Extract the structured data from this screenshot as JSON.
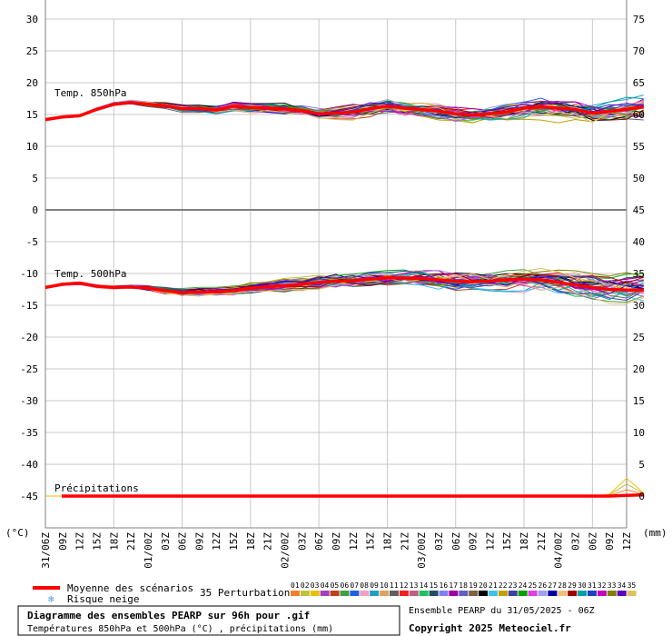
{
  "chart_data": {
    "type": "line",
    "title": "Diagramme des ensembles PEARP sur 96h pour .gif",
    "subtitle": "Températures 850hPa et 500hPa (°C) , précipitations (mm)",
    "run_label": "Ensemble PEARP du 31/05/2025 - 06Z",
    "copyright": "Copyright 2025 Meteociel.fr",
    "left_unit": "(°C)",
    "right_unit": "(mm)",
    "left_ylim": [
      -50,
      30
    ],
    "right_ylim": [
      0,
      80
    ],
    "left_ticks": [
      "30",
      "25",
      "20",
      "15",
      "10",
      "5",
      "0",
      "-5",
      "-10",
      "-15",
      "-20",
      "-25",
      "-30",
      "-35",
      "-40",
      "-45"
    ],
    "right_ticks": [
      "75",
      "70",
      "65",
      "60",
      "55",
      "50",
      "45",
      "40",
      "35",
      "30",
      "25",
      "20",
      "15",
      "10",
      "5",
      "0"
    ],
    "x_ticks": [
      "31/06Z",
      "09Z",
      "12Z",
      "15Z",
      "18Z",
      "21Z",
      "01/00Z",
      "03Z",
      "06Z",
      "09Z",
      "12Z",
      "15Z",
      "18Z",
      "21Z",
      "02/00Z",
      "03Z",
      "06Z",
      "09Z",
      "12Z",
      "15Z",
      "18Z",
      "21Z",
      "03/00Z",
      "03Z",
      "06Z",
      "09Z",
      "12Z",
      "15Z",
      "18Z",
      "21Z",
      "04/00Z",
      "03Z",
      "06Z",
      "09Z",
      "12Z"
    ],
    "panels": {
      "t850_label": "Temp. 850hPa",
      "t500_label": "Temp. 500hPa",
      "precip_label": "Précipitations"
    },
    "mean_t850": [
      14.2,
      14.6,
      14.8,
      15.8,
      16.6,
      16.9,
      16.6,
      16.4,
      15.9,
      15.9,
      15.7,
      16.3,
      16.1,
      16.0,
      15.9,
      15.6,
      15.1,
      15.2,
      15.4,
      15.9,
      16.3,
      16.0,
      15.8,
      15.5,
      15.1,
      14.9,
      15.1,
      15.4,
      16.0,
      16.2,
      16.0,
      15.8,
      15.2,
      15.5,
      15.8,
      16.2
    ],
    "mean_t500": [
      -12.2,
      -11.7,
      -11.5,
      -12.0,
      -12.2,
      -12.1,
      -12.3,
      -12.7,
      -13.0,
      -12.9,
      -12.9,
      -12.7,
      -12.3,
      -12.1,
      -11.9,
      -11.7,
      -11.4,
      -11.2,
      -11.1,
      -10.9,
      -10.7,
      -10.7,
      -10.8,
      -11.0,
      -11.2,
      -11.3,
      -11.2,
      -11.0,
      -10.9,
      -11.0,
      -11.4,
      -11.8,
      -12.2,
      -12.5,
      -12.6,
      -12.6
    ],
    "mean_precip": [
      0,
      0,
      0,
      0,
      0,
      0,
      0,
      0,
      0,
      0,
      0,
      0,
      0,
      0,
      0,
      0,
      0,
      0,
      0,
      0,
      0,
      0,
      0,
      0,
      0,
      0,
      0,
      0,
      0,
      0,
      0,
      0,
      0,
      0,
      0.1,
      0.2
    ],
    "legend": {
      "mean_label": "Moyenne des scénarios",
      "snow_label": "Risque neige",
      "perturbations_label": "35 Perturbations",
      "members": [
        "01",
        "02",
        "03",
        "04",
        "05",
        "06",
        "07",
        "08",
        "09",
        "10",
        "11",
        "12",
        "13",
        "14",
        "15",
        "16",
        "17",
        "18",
        "19",
        "20",
        "21",
        "22",
        "23",
        "24",
        "25",
        "26",
        "27",
        "28",
        "29",
        "30",
        "31",
        "32",
        "33",
        "34",
        "35"
      ],
      "member_colors": [
        "#f08030",
        "#c0c040",
        "#e8c000",
        "#a040c0",
        "#c04020",
        "#40a040",
        "#2060e0",
        "#f0a0c0",
        "#20a0c0",
        "#e0a060",
        "#606060",
        "#f02020",
        "#c06080",
        "#20c060",
        "#205060",
        "#8080f0",
        "#a000a0",
        "#6060c0",
        "#806040",
        "#000000",
        "#40c0f0",
        "#c0a000",
        "#4040a0",
        "#00a000",
        "#e040e0",
        "#a0a0f0",
        "#0000a0",
        "#f0c080",
        "#a00000",
        "#00a0a0",
        "#2040c0",
        "#c000c0",
        "#808000",
        "#6000c0",
        "#e0c060"
      ]
    }
  }
}
